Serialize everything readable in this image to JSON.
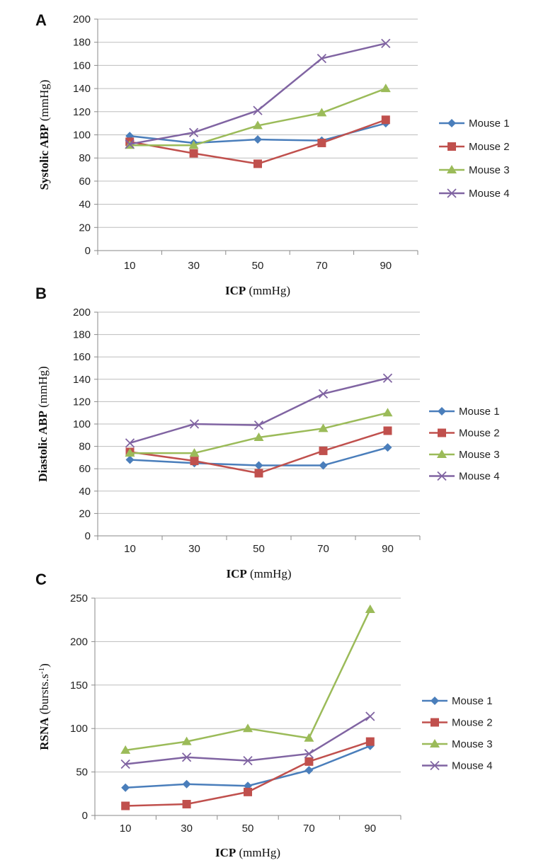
{
  "chart_data": [
    {
      "panel": "A",
      "type": "line",
      "categories": [
        "10",
        "30",
        "50",
        "70",
        "90"
      ],
      "ylim": [
        0,
        200
      ],
      "yticks": [
        0,
        20,
        40,
        60,
        80,
        100,
        120,
        140,
        160,
        180,
        200
      ],
      "grid": true,
      "legend_position": "right",
      "xlabel": {
        "bold": "ICP",
        "rest": " (mmHg)"
      },
      "ylabel": {
        "bold": "Systolic ABP",
        "rest": " (mmHg)"
      },
      "series": [
        {
          "name": "Mouse 1",
          "color": "#4a7ebb",
          "marker": "diamond",
          "values": [
            99,
            93,
            96,
            95,
            110
          ]
        },
        {
          "name": "Mouse 2",
          "color": "#c0504d",
          "marker": "square",
          "values": [
            94,
            84,
            75,
            93,
            113
          ]
        },
        {
          "name": "Mouse 3",
          "color": "#9bbb59",
          "marker": "triangle",
          "values": [
            91,
            91,
            108,
            119,
            140
          ]
        },
        {
          "name": "Mouse 4",
          "color": "#8064a2",
          "marker": "x",
          "values": [
            92,
            102,
            121,
            166,
            179
          ]
        }
      ]
    },
    {
      "panel": "B",
      "type": "line",
      "categories": [
        "10",
        "30",
        "50",
        "70",
        "90"
      ],
      "ylim": [
        0,
        200
      ],
      "yticks": [
        0,
        20,
        40,
        60,
        80,
        100,
        120,
        140,
        160,
        180,
        200
      ],
      "grid": true,
      "legend_position": "right",
      "xlabel": {
        "bold": "ICP",
        "rest": " (mmHg)"
      },
      "ylabel": {
        "bold": "Diastolic ABP",
        "rest": " (mmHg)"
      },
      "series": [
        {
          "name": "Mouse 1",
          "color": "#4a7ebb",
          "marker": "diamond",
          "values": [
            68,
            65,
            63,
            63,
            79
          ]
        },
        {
          "name": "Mouse 2",
          "color": "#c0504d",
          "marker": "square",
          "values": [
            75,
            67,
            56,
            76,
            94
          ]
        },
        {
          "name": "Mouse 3",
          "color": "#9bbb59",
          "marker": "triangle",
          "values": [
            74,
            74,
            88,
            96,
            110
          ]
        },
        {
          "name": "Mouse 4",
          "color": "#8064a2",
          "marker": "x",
          "values": [
            83,
            100,
            99,
            127,
            141
          ]
        }
      ]
    },
    {
      "panel": "C",
      "type": "line",
      "categories": [
        "10",
        "30",
        "50",
        "70",
        "90"
      ],
      "ylim": [
        0,
        250
      ],
      "yticks": [
        0,
        50,
        100,
        150,
        200,
        250
      ],
      "grid": true,
      "legend_position": "right",
      "xlabel": {
        "bold": "ICP",
        "rest": " (mmHg)"
      },
      "ylabel": {
        "bold": "RSNA",
        "rest": " (bursts.s",
        "sup": "-1",
        "tail": ")"
      },
      "series": [
        {
          "name": "Mouse 1",
          "color": "#4a7ebb",
          "marker": "diamond",
          "values": [
            32,
            36,
            34,
            52,
            80
          ]
        },
        {
          "name": "Mouse 2",
          "color": "#c0504d",
          "marker": "square",
          "values": [
            11,
            13,
            27,
            62,
            85
          ]
        },
        {
          "name": "Mouse 3",
          "color": "#9bbb59",
          "marker": "triangle",
          "values": [
            75,
            85,
            100,
            89,
            237
          ]
        },
        {
          "name": "Mouse 4",
          "color": "#8064a2",
          "marker": "x",
          "values": [
            59,
            67,
            63,
            71,
            114
          ]
        }
      ]
    }
  ]
}
